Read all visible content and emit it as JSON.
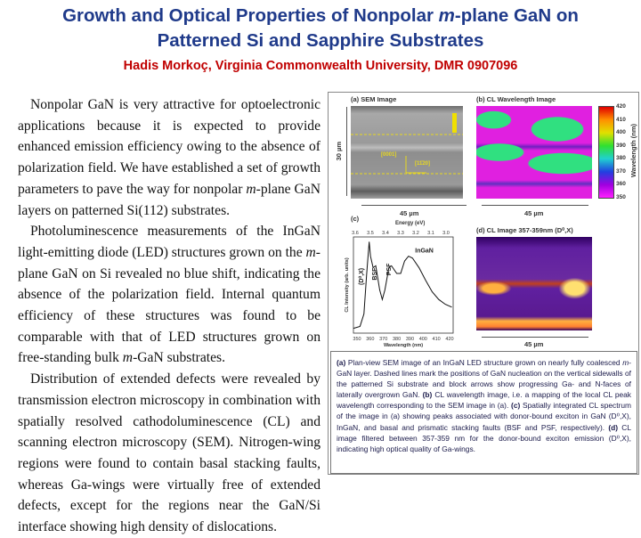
{
  "header": {
    "title_line1_pre": "Growth and Optical Properties of Nonpolar ",
    "title_line1_em": "m",
    "title_line1_post": "-plane GaN on",
    "title_line2": "Patterned Si and Sapphire Substrates",
    "subtitle": "Hadis Morkoç, Virginia Commonwealth University, DMR 0907096"
  },
  "colors": {
    "title": "#1f3a8a",
    "subtitle": "#c00000"
  },
  "body": {
    "p1_a": "Nonpolar GaN is very attractive for optoelectronic applications because it is expected to provide enhanced emission efficiency owing to the absence of polarization field. We have established a set of growth parameters to pave the way for nonpolar ",
    "p1_em": "m",
    "p1_b": "-plane GaN layers on patterned Si(112) substrates.",
    "p2_a": "Photoluminescence measurements of the InGaN light-emitting diode (LED) structures grown on the ",
    "p2_em": "m",
    "p2_b": "-plane GaN on Si revealed no blue shift, indicating the absence of the polarization field. Internal quantum efficiency of these structures was found to be comparable with that of LED structures grown on free-standing bulk ",
    "p2_em2": "m",
    "p2_c": "-GaN substrates.",
    "p3": "Distribution of extended defects were revealed by transmission electron microscopy in combination with spatially resolved cathodoluminescence (CL) and scanning electron microscopy (SEM). Nitrogen-wing regions were found to contain basal stacking faults, whereas Ga-wings were virtually free of extended defects, except for the regions near the GaN/Si interface showing high density of dislocations."
  },
  "figure": {
    "a_label": "(a) SEM Image",
    "a_height": "30 µm",
    "a_width": "45 µm",
    "dir1": "[0001]",
    "dir2": "[11̄20]",
    "b_label": "(b) CL Wavelength Image",
    "b_width": "45 µm",
    "colorbar_title": "Wavelength (nm)",
    "colorbar_ticks": [
      "420",
      "410",
      "400",
      "390",
      "380",
      "370",
      "360",
      "350"
    ],
    "c_label": "(c)",
    "c_top_axis": "Energy (eV)",
    "c_top_ticks": [
      "3.6",
      "3.5",
      "3.4",
      "3.3",
      "3.2",
      "3.1",
      "3.0"
    ],
    "c_xlabel": "Wavelength (nm)",
    "c_xticks": [
      "350",
      "360",
      "370",
      "380",
      "390",
      "400",
      "410",
      "420"
    ],
    "c_ylabel": "CL Intensity (arb. units)",
    "peaks": [
      "(D⁰,X)",
      "BSF",
      "PSF",
      "InGaN"
    ],
    "d_label": "(d) CL Image 357-359nm (D⁰,X)",
    "d_width": "45 µm"
  },
  "caption": {
    "a": "(a)",
    "a_text1": " Plan-view SEM image of an InGaN LED structure grown on nearly fully coalesced ",
    "a_em": "m",
    "a_text2": "-GaN layer. Dashed lines mark the positions of GaN nucleation on the vertical sidewalls of the patterned Si substrate and block arrows show progressing Ga- and N-faces of laterally overgrown GaN. ",
    "b": "(b)",
    "b_text": " CL wavelength image, i.e. a mapping of the local CL peak wavelength corresponding to the SEM image in (a). ",
    "c": "(c)",
    "c_text": " Spatially integrated CL spectrum of the image in (a) showing peaks associated with donor-bound exciton in GaN (D⁰,X), InGaN, and basal and prismatic stacking faults (BSF and PSF, respectively). ",
    "d": "(d)",
    "d_text": " CL image filtered between 357-359 nm for the donor-bound exciton emission (D⁰,X), indicating high optical quality of Ga-wings."
  }
}
